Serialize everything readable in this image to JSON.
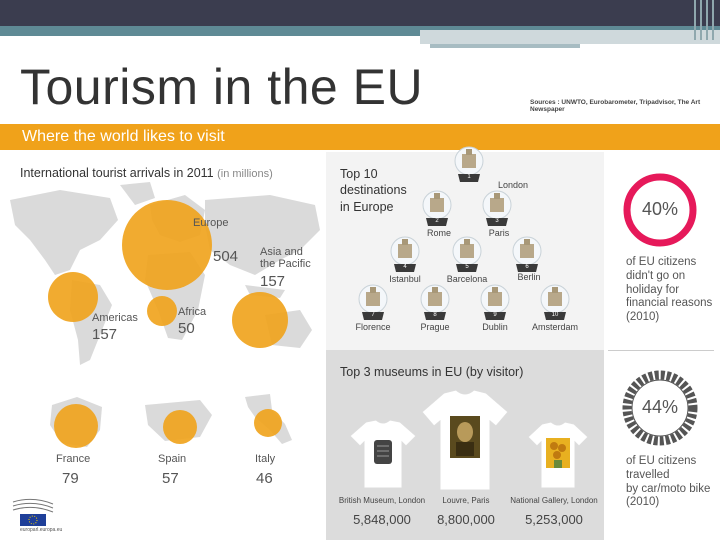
{
  "title": "Tourism in the EU",
  "sources": "Sources : UNWTO, Eurobarometer, Tripadvisor, The Art Newspaper",
  "band": "Where the world likes to visit",
  "arrivals": {
    "heading": "International tourist arrivals in 2011",
    "unit": "(in millions)",
    "regions": [
      {
        "label": "Europe",
        "value": "504"
      },
      {
        "label": "Asia and",
        "label2": "the Pacific",
        "value": "157"
      },
      {
        "label": "Americas",
        "value": "157"
      },
      {
        "label": "Africa",
        "value": "50"
      }
    ],
    "countries": [
      {
        "label": "France",
        "value": "79"
      },
      {
        "label": "Spain",
        "value": "57"
      },
      {
        "label": "Italy",
        "value": "46"
      }
    ]
  },
  "destinations": {
    "heading1": "Top 10",
    "heading2": "destinations",
    "heading3": "in Europe",
    "items": [
      {
        "rank": "1",
        "name": "London"
      },
      {
        "rank": "2",
        "name": "Rome"
      },
      {
        "rank": "3",
        "name": "Paris"
      },
      {
        "rank": "4",
        "name": "Istanbul"
      },
      {
        "rank": "5",
        "name": "Barcelona"
      },
      {
        "rank": "6",
        "name": "Berlin"
      },
      {
        "rank": "7",
        "name": "Florence"
      },
      {
        "rank": "8",
        "name": "Prague"
      },
      {
        "rank": "9",
        "name": "Dublin"
      },
      {
        "rank": "10",
        "name": "Amsterdam"
      }
    ]
  },
  "museums": {
    "heading": "Top 3 museums in EU (by visitor)",
    "items": [
      {
        "name": "British Museum, London",
        "count": "5,848,000"
      },
      {
        "name": "Louvre, Paris",
        "count": "8,800,000"
      },
      {
        "name": "National Gallery, London",
        "count": "5,253,000"
      }
    ]
  },
  "stats": [
    {
      "value": "40%",
      "lines": [
        "of EU citizens",
        "didn't go on",
        "holiday for",
        "financial reasons",
        "(2010)"
      ],
      "color": "#e6195a"
    },
    {
      "value": "44%",
      "lines": [
        "of EU citizens",
        "travelled",
        "by car/moto bike",
        "(2010)"
      ],
      "color": "#555555"
    }
  ],
  "footer": {
    "url": "europarl.europa.eu"
  },
  "colors": {
    "accent": "#f0a21a",
    "header": "#3b3d4f"
  }
}
